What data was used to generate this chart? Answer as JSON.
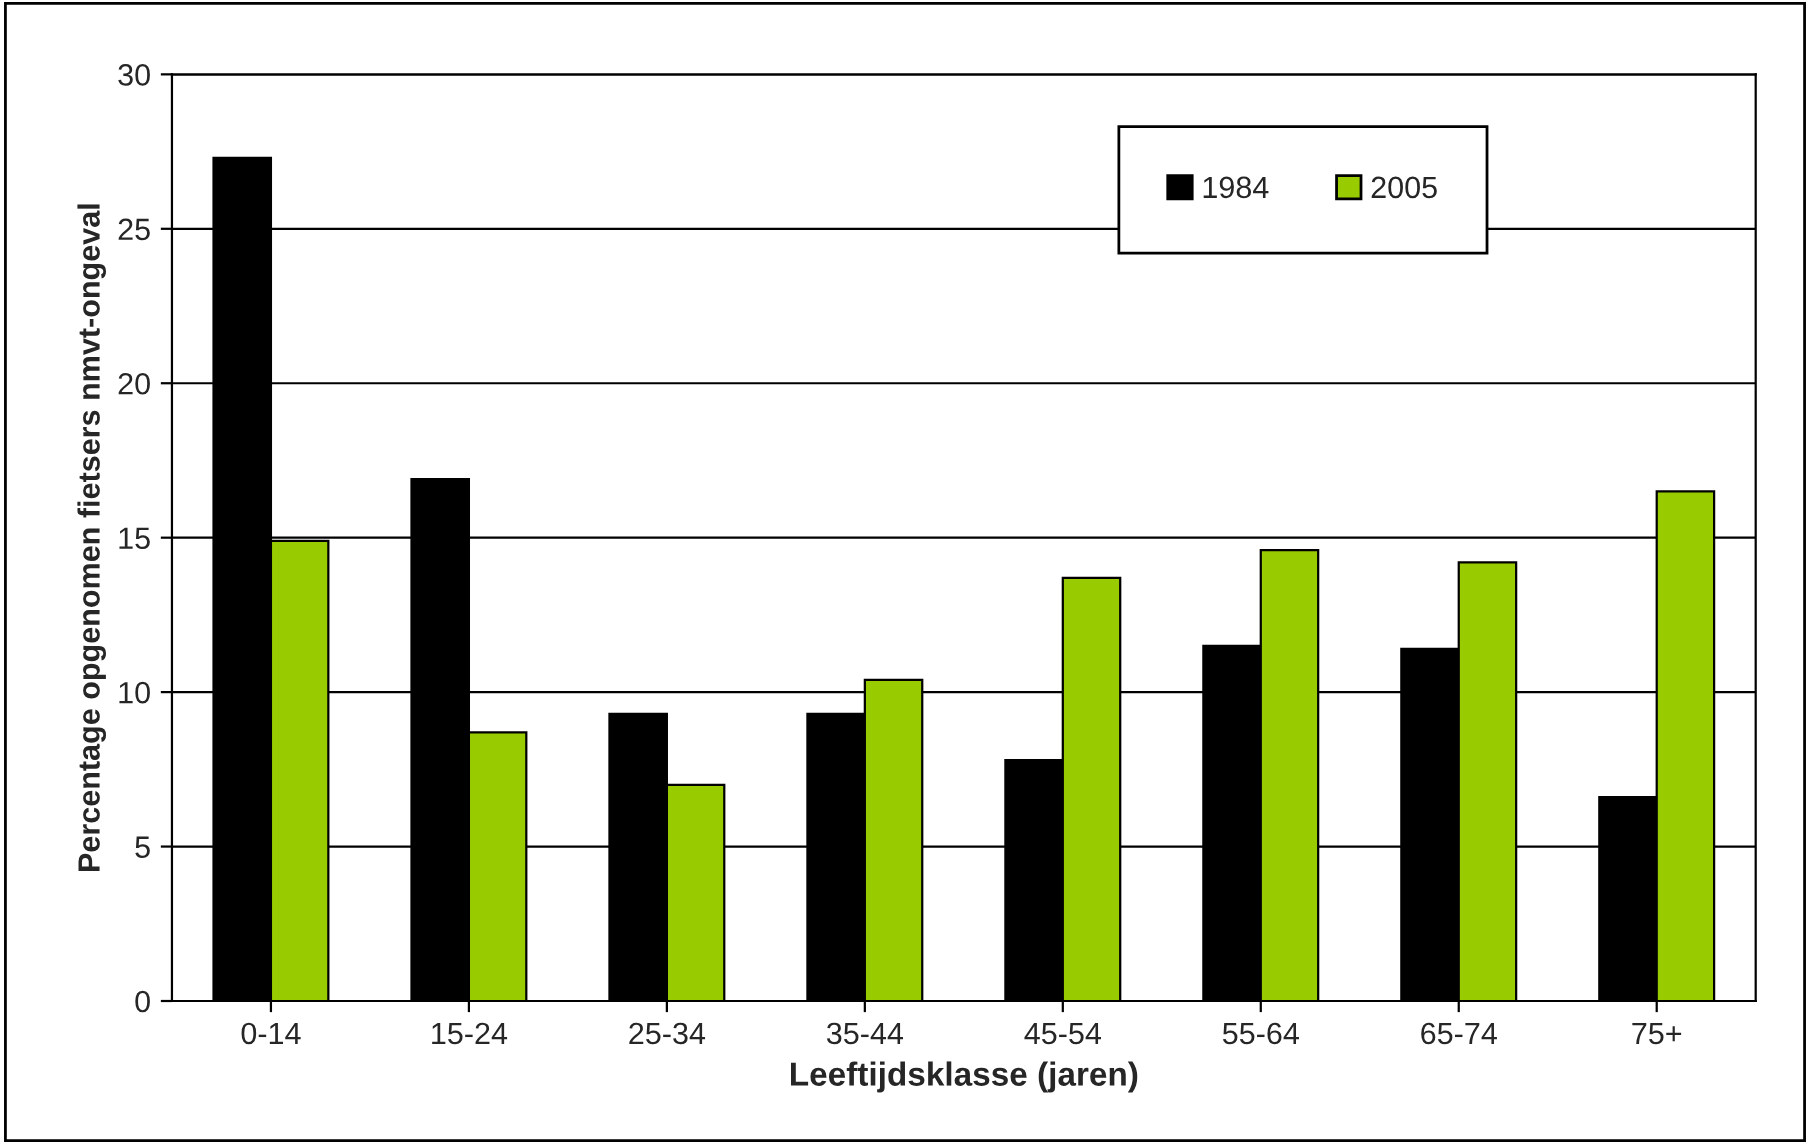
{
  "chart_data": {
    "type": "bar",
    "xlabel": "Leeftijdsklasse (jaren)",
    "ylabel": "Percentage opgenomen fietsers nmvt-ongeval",
    "categories": [
      "0-14",
      "15-24",
      "25-34",
      "35-44",
      "45-54",
      "55-64",
      "65-74",
      "75+"
    ],
    "series": [
      {
        "name": "1984",
        "color": "#000000",
        "values": [
          27.3,
          16.9,
          9.3,
          9.3,
          7.8,
          11.5,
          11.4,
          6.6
        ]
      },
      {
        "name": "2005",
        "color": "#99cc00",
        "values": [
          14.9,
          8.7,
          7.0,
          10.4,
          13.7,
          14.6,
          14.2,
          16.5
        ]
      }
    ],
    "ylim": [
      0,
      30
    ],
    "yticks": [
      0,
      5,
      10,
      15,
      20,
      25,
      30
    ],
    "grid": "y",
    "legend": "top right"
  }
}
